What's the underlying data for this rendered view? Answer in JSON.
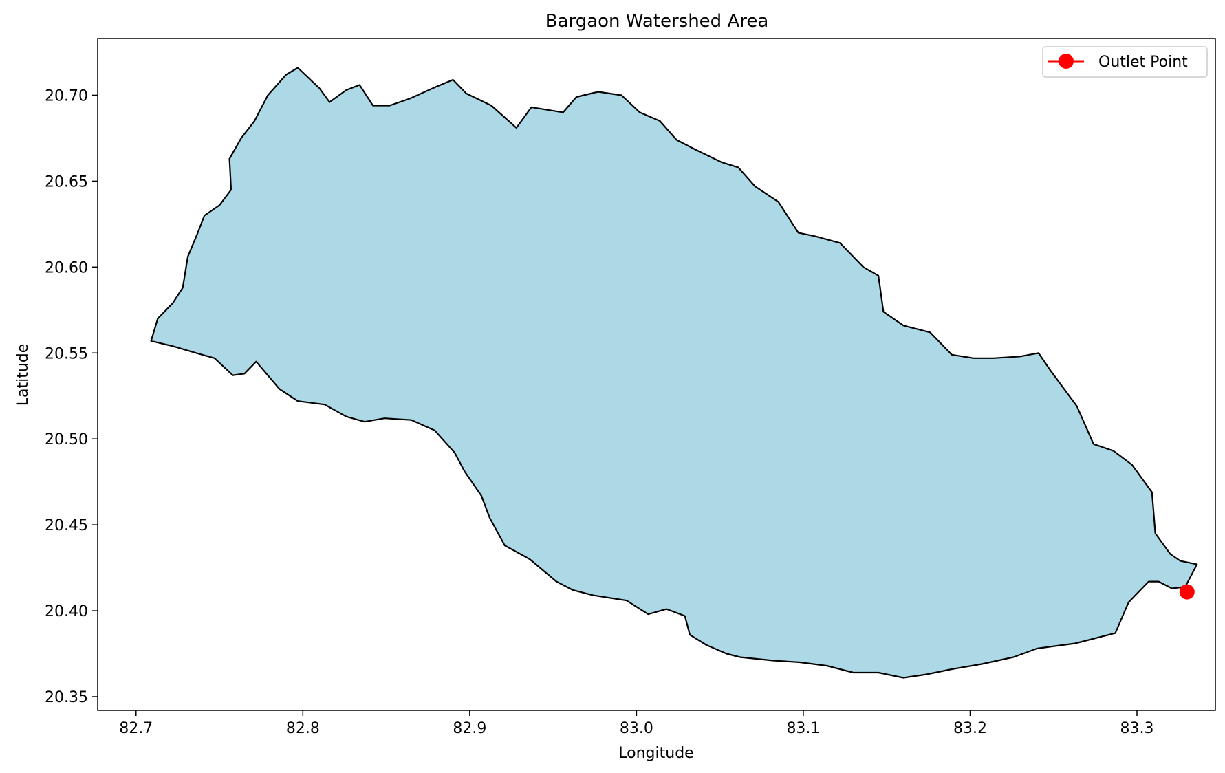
{
  "title": "Bargaon Watershed Area",
  "xlabel": "Longitude",
  "ylabel": "Latitude",
  "legend": {
    "label": "Outlet Point",
    "position": "upper-right"
  },
  "colors": {
    "fill": "#add8e6",
    "boundary": "#000000",
    "outlet": "#ff0000"
  },
  "x_ticks": [
    "82.7",
    "82.8",
    "82.9",
    "83.0",
    "83.1",
    "83.2",
    "83.3"
  ],
  "y_ticks": [
    "20.35",
    "20.40",
    "20.45",
    "20.50",
    "20.55",
    "20.60",
    "20.65",
    "20.70"
  ],
  "map_data": {
    "xlim": [
      82.677,
      83.347
    ],
    "ylim": [
      20.342,
      20.733
    ],
    "outlet": {
      "lon": 83.33,
      "lat": 20.411
    },
    "boundary": [
      [
        82.709,
        20.557
      ],
      [
        82.713,
        20.57
      ],
      [
        82.722,
        20.579
      ],
      [
        82.728,
        20.588
      ],
      [
        82.731,
        20.606
      ],
      [
        82.737,
        20.62
      ],
      [
        82.741,
        20.63
      ],
      [
        82.75,
        20.636
      ],
      [
        82.757,
        20.645
      ],
      [
        82.756,
        20.663
      ],
      [
        82.763,
        20.675
      ],
      [
        82.771,
        20.685
      ],
      [
        82.779,
        20.7
      ],
      [
        82.79,
        20.712
      ],
      [
        82.797,
        20.716
      ],
      [
        82.81,
        20.704
      ],
      [
        82.816,
        20.696
      ],
      [
        82.826,
        20.703
      ],
      [
        82.834,
        20.706
      ],
      [
        82.842,
        20.694
      ],
      [
        82.852,
        20.694
      ],
      [
        82.864,
        20.698
      ],
      [
        82.88,
        20.705
      ],
      [
        82.89,
        20.709
      ],
      [
        82.898,
        20.701
      ],
      [
        82.913,
        20.694
      ],
      [
        82.928,
        20.681
      ],
      [
        82.937,
        20.693
      ],
      [
        82.956,
        20.69
      ],
      [
        82.964,
        20.699
      ],
      [
        82.977,
        20.702
      ],
      [
        82.991,
        20.7
      ],
      [
        83.002,
        20.69
      ],
      [
        83.014,
        20.685
      ],
      [
        83.024,
        20.674
      ],
      [
        83.036,
        20.668
      ],
      [
        83.051,
        20.661
      ],
      [
        83.061,
        20.658
      ],
      [
        83.071,
        20.647
      ],
      [
        83.085,
        20.638
      ],
      [
        83.097,
        20.62
      ],
      [
        83.107,
        20.618
      ],
      [
        83.122,
        20.614
      ],
      [
        83.136,
        20.6
      ],
      [
        83.145,
        20.595
      ],
      [
        83.148,
        20.574
      ],
      [
        83.16,
        20.566
      ],
      [
        83.176,
        20.562
      ],
      [
        83.189,
        20.549
      ],
      [
        83.202,
        20.547
      ],
      [
        83.214,
        20.547
      ],
      [
        83.23,
        20.548
      ],
      [
        83.241,
        20.55
      ],
      [
        83.248,
        20.54
      ],
      [
        83.264,
        20.519
      ],
      [
        83.274,
        20.497
      ],
      [
        83.286,
        20.493
      ],
      [
        83.297,
        20.485
      ],
      [
        83.309,
        20.469
      ],
      [
        83.311,
        20.445
      ],
      [
        83.32,
        20.433
      ],
      [
        83.326,
        20.429
      ],
      [
        83.336,
        20.427
      ],
      [
        83.329,
        20.414
      ],
      [
        83.321,
        20.413
      ],
      [
        83.313,
        20.417
      ],
      [
        83.307,
        20.417
      ],
      [
        83.295,
        20.405
      ],
      [
        83.287,
        20.387
      ],
      [
        83.263,
        20.381
      ],
      [
        83.24,
        20.378
      ],
      [
        83.226,
        20.373
      ],
      [
        83.207,
        20.369
      ],
      [
        83.189,
        20.366
      ],
      [
        83.174,
        20.363
      ],
      [
        83.16,
        20.361
      ],
      [
        83.145,
        20.364
      ],
      [
        83.13,
        20.364
      ],
      [
        83.114,
        20.368
      ],
      [
        83.098,
        20.37
      ],
      [
        83.082,
        20.371
      ],
      [
        83.062,
        20.373
      ],
      [
        83.054,
        20.375
      ],
      [
        83.042,
        20.38
      ],
      [
        83.032,
        20.386
      ],
      [
        83.029,
        20.397
      ],
      [
        83.018,
        20.401
      ],
      [
        83.007,
        20.398
      ],
      [
        82.994,
        20.406
      ],
      [
        82.974,
        20.409
      ],
      [
        82.962,
        20.412
      ],
      [
        82.952,
        20.417
      ],
      [
        82.936,
        20.43
      ],
      [
        82.921,
        20.438
      ],
      [
        82.912,
        20.454
      ],
      [
        82.907,
        20.467
      ],
      [
        82.897,
        20.481
      ],
      [
        82.891,
        20.492
      ],
      [
        82.879,
        20.505
      ],
      [
        82.865,
        20.511
      ],
      [
        82.849,
        20.512
      ],
      [
        82.837,
        20.51
      ],
      [
        82.826,
        20.513
      ],
      [
        82.813,
        20.52
      ],
      [
        82.797,
        20.522
      ],
      [
        82.786,
        20.529
      ],
      [
        82.772,
        20.545
      ],
      [
        82.765,
        20.538
      ],
      [
        82.758,
        20.537
      ],
      [
        82.747,
        20.547
      ],
      [
        82.736,
        20.55
      ],
      [
        82.722,
        20.554
      ]
    ]
  }
}
